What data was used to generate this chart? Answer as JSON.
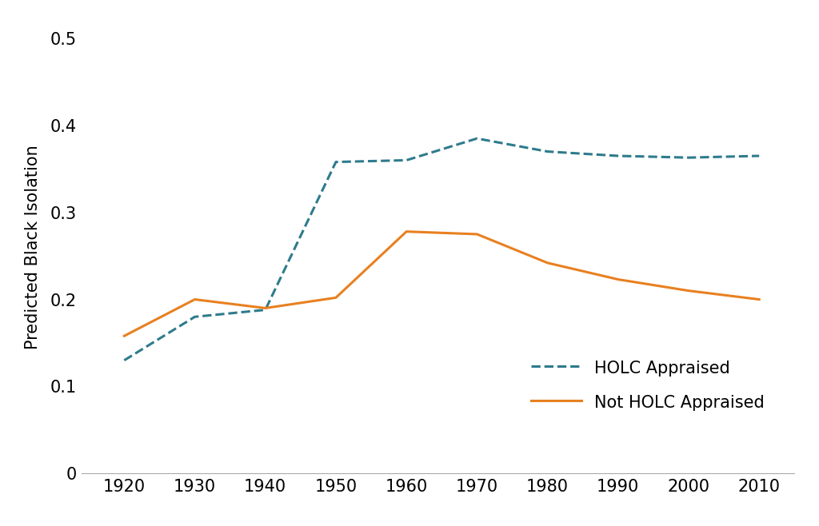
{
  "holc_x": [
    1920,
    1930,
    1940,
    1950,
    1960,
    1970,
    1980,
    1990,
    2000,
    2010
  ],
  "holc_y": [
    0.13,
    0.18,
    0.188,
    0.358,
    0.36,
    0.385,
    0.37,
    0.365,
    0.363,
    0.365
  ],
  "not_holc_x": [
    1920,
    1930,
    1940,
    1950,
    1960,
    1970,
    1980,
    1990,
    2000,
    2010
  ],
  "not_holc_y": [
    0.158,
    0.2,
    0.19,
    0.202,
    0.278,
    0.275,
    0.242,
    0.223,
    0.21,
    0.2
  ],
  "holc_color": "#2e7b8c",
  "not_holc_color": "#e88020",
  "ylabel": "Predicted Black Isolation",
  "ylim": [
    0,
    0.52
  ],
  "xlim": [
    1914,
    2015
  ],
  "yticks": [
    0,
    0.1,
    0.2,
    0.3,
    0.4,
    0.5
  ],
  "xticks": [
    1920,
    1930,
    1940,
    1950,
    1960,
    1970,
    1980,
    1990,
    2000,
    2010
  ],
  "legend_holc": "HOLC Appraised",
  "legend_not_holc": "Not HOLC Appraised",
  "background_color": "#ffffff",
  "line_width": 2.2,
  "font_size_ticks": 15,
  "font_size_ylabel": 15
}
